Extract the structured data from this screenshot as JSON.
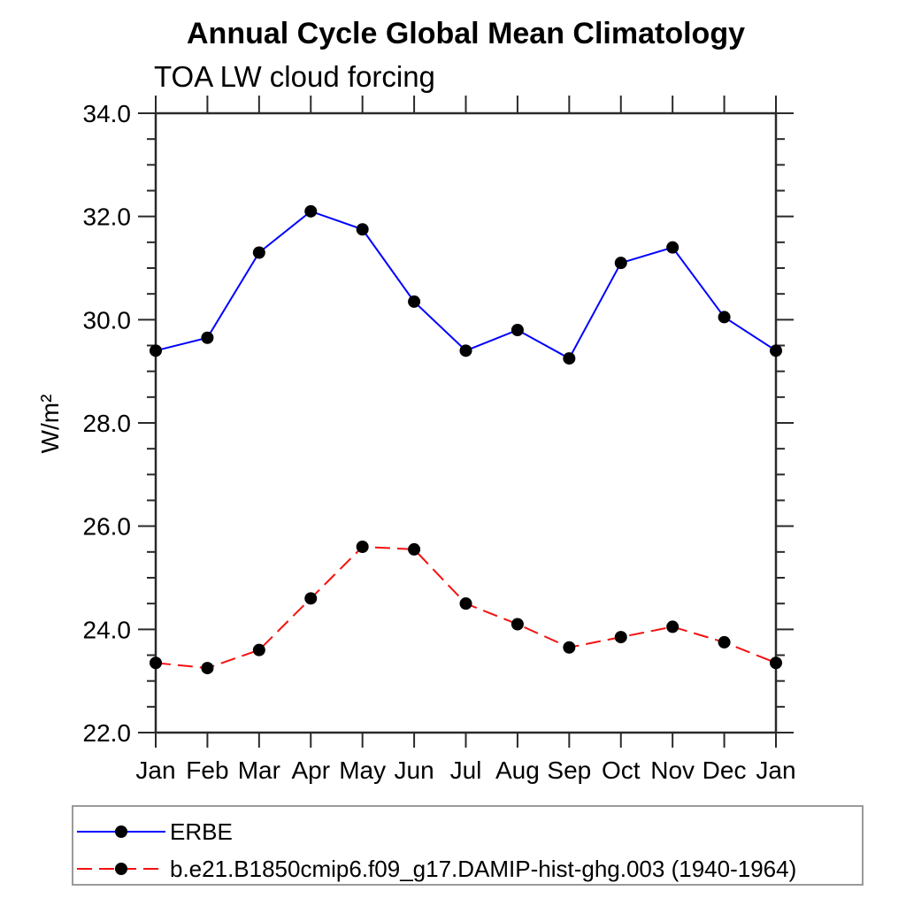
{
  "chart_data": {
    "type": "line",
    "title": "Annual Cycle Global Mean Climatology",
    "subtitle": "TOA LW cloud forcing",
    "xlabel": "",
    "ylabel": "W/m²",
    "categories": [
      "Jan",
      "Feb",
      "Mar",
      "Apr",
      "May",
      "Jun",
      "Jul",
      "Aug",
      "Sep",
      "Oct",
      "Nov",
      "Dec",
      "Jan"
    ],
    "ylim": [
      22.0,
      34.0
    ],
    "ytick_interval": 2.0,
    "yminor_interval": 0.5,
    "ytick_labels": [
      "22.0",
      "24.0",
      "26.0",
      "28.0",
      "30.0",
      "32.0",
      "34.0"
    ],
    "grid": false,
    "legend_position": "bottom-left-box",
    "frame_color": "#2a2a2a",
    "marker": "filled-circle",
    "marker_color": "#000000",
    "series": [
      {
        "name": "ERBE",
        "color": "#0000ff",
        "line_style": "solid",
        "values": [
          29.4,
          29.65,
          31.3,
          32.1,
          31.75,
          30.35,
          29.4,
          29.8,
          29.25,
          31.1,
          31.4,
          30.05,
          29.4
        ]
      },
      {
        "name": "b.e21.B1850cmip6.f09_g17.DAMIP-hist-ghg.003 (1940-1964)",
        "color": "#f51010",
        "line_style": "dashed",
        "values": [
          23.35,
          23.25,
          23.6,
          24.6,
          25.6,
          25.55,
          24.5,
          24.1,
          23.65,
          23.85,
          24.05,
          23.75,
          23.35
        ]
      }
    ]
  }
}
